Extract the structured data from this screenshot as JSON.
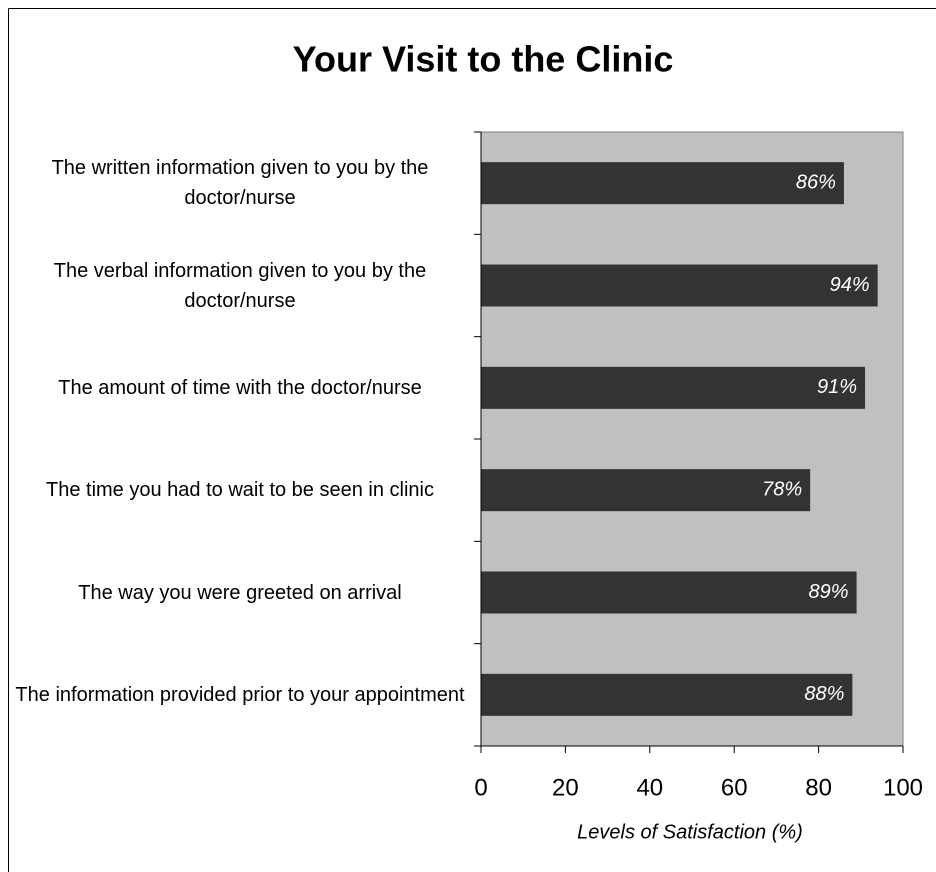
{
  "chart_data": {
    "type": "bar",
    "orientation": "horizontal",
    "title": "Your Visit to the Clinic",
    "x_label": "Levels of Satisfaction (%)",
    "categories": [
      "The written information given to you by the doctor/nurse",
      "The verbal information given to you by the doctor/nurse",
      "The amount of time with the doctor/nurse",
      "The time you had to wait to be seen in clinic",
      "The way you were greeted on arrival",
      "The information provided prior to your appointment"
    ],
    "values": [
      86,
      94,
      91,
      78,
      89,
      88
    ],
    "value_labels": [
      "86%",
      "94%",
      "91%",
      "78%",
      "89%",
      "88%"
    ],
    "color": "#333333",
    "plot_background": "#c0c0c0",
    "xlim": [
      0,
      100
    ],
    "xticks": [
      0,
      20,
      40,
      60,
      80,
      100
    ],
    "grid": false
  }
}
